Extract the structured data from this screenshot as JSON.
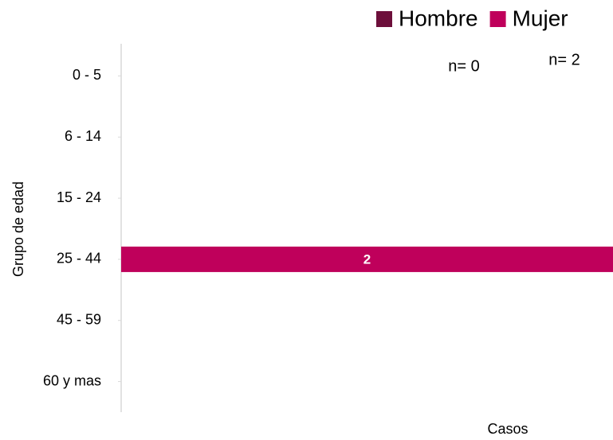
{
  "chart_data": {
    "type": "stacked-barh",
    "categories": [
      "0 - 5",
      "6 - 14",
      "15 - 24",
      "25 - 44",
      "45 - 59",
      "60 y mas"
    ],
    "series": [
      {
        "name": "Hombre",
        "color": "#6d0f3b",
        "values": [
          null,
          null,
          null,
          0,
          null,
          null
        ]
      },
      {
        "name": "Mujer",
        "color": "#bf005b",
        "values": [
          null,
          null,
          null,
          2,
          null,
          null
        ]
      }
    ],
    "xlim": [
      0,
      2
    ],
    "xlabel": "Casos",
    "ylabel": "Grupo de edad",
    "annotations": [
      "n= 0",
      "n= 2"
    ],
    "legend": "top-right"
  }
}
